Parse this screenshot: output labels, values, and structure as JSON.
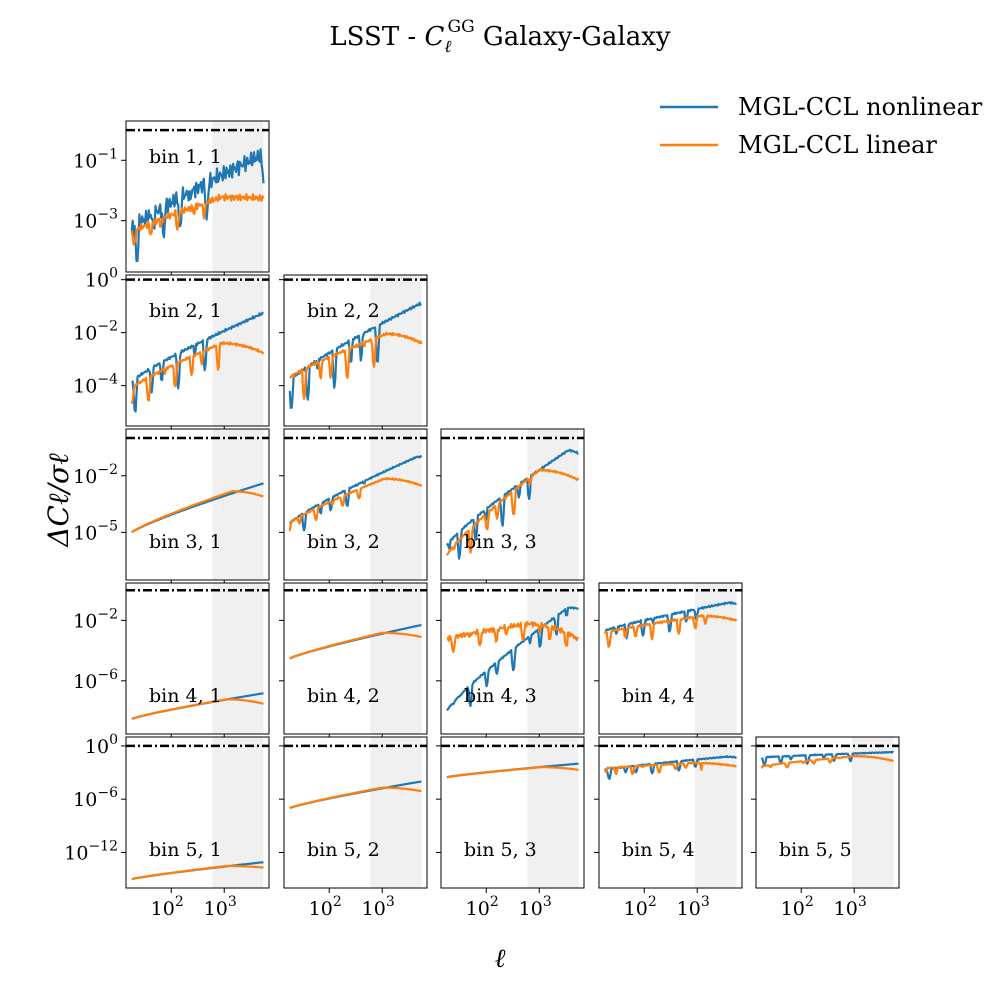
{
  "figure": {
    "title_prefix": "LSST - ",
    "title_sym": "C",
    "title_sub": "ℓ",
    "title_sup": "GG",
    "title_suffix": " Galaxy-Galaxy",
    "ylabel": "ΔCℓ/σℓ",
    "xlabel": "ℓ"
  },
  "legend": {
    "placement": "top-right",
    "entries": [
      {
        "label": "MGL-CCL nonlinear",
        "color": "#1f77b4"
      },
      {
        "label": "MGL-CCL linear",
        "color": "#ff7f0e"
      }
    ]
  },
  "colors": {
    "nonlinear": "#1f77b4",
    "linear": "#ff7f0e",
    "threshold": "#000000",
    "shade": "#f0f0f0"
  },
  "chart_data": {
    "type": "line",
    "xscale": "log",
    "yscale": "log",
    "xlim": [
      14,
      7000
    ],
    "x_ticks": [
      {
        "value": 100,
        "base": "10",
        "exp": "2"
      },
      {
        "value": 1000,
        "base": "10",
        "exp": "3"
      }
    ],
    "threshold_line": {
      "y": 1,
      "style": "dash-dot"
    },
    "rows": [
      {
        "row": 1,
        "ylim": [
          2e-05,
          2
        ],
        "y_ticks": [
          {
            "value": 0.001,
            "base": "10",
            "exp": "−3"
          },
          {
            "value": 0.1,
            "base": "10",
            "exp": "−1"
          }
        ]
      },
      {
        "row": 2,
        "ylim": [
          3e-06,
          1.5
        ],
        "y_ticks": [
          {
            "value": 0.0001,
            "base": "10",
            "exp": "−4"
          },
          {
            "value": 0.01,
            "base": "10",
            "exp": "−2"
          },
          {
            "value": 1,
            "base": "10",
            "exp": "0"
          }
        ]
      },
      {
        "row": 3,
        "ylim": [
          3e-08,
          3
        ],
        "y_ticks": [
          {
            "value": 1e-05,
            "base": "10",
            "exp": "−5"
          },
          {
            "value": 0.01,
            "base": "10",
            "exp": "−2"
          }
        ]
      },
      {
        "row": 4,
        "ylim": [
          3e-10,
          3
        ],
        "y_ticks": [
          {
            "value": 1e-06,
            "base": "10",
            "exp": "−6"
          },
          {
            "value": 0.01,
            "base": "10",
            "exp": "−2"
          }
        ]
      },
      {
        "row": 5,
        "ylim": [
          1e-16,
          10
        ],
        "y_ticks": [
          {
            "value": 1e-12,
            "base": "10",
            "exp": "−12"
          },
          {
            "value": 1e-06,
            "base": "10",
            "exp": "−6"
          },
          {
            "value": 1,
            "base": "10",
            "exp": "0"
          }
        ]
      }
    ],
    "panels": [
      {
        "label": "bin 1, 1",
        "row": 1,
        "col": 1,
        "shade_from": 600,
        "shade_to": 5500,
        "nonlinear": {
          "start": 0.0005,
          "end": 0.02,
          "peak": 0.14,
          "peak_x": 4700,
          "osc": 1.2,
          "osc_end": 700,
          "noise": 0.3
        },
        "linear": {
          "start": 0.0004,
          "end": 0.0055,
          "peak": 0.006,
          "peak_x": 900,
          "osc": 0.5,
          "osc_end": 700,
          "noise": 0.12
        }
      },
      {
        "label": "bin 2, 1",
        "row": 2,
        "col": 1,
        "shade_from": 600,
        "shade_to": 5500,
        "nonlinear": {
          "start": 0.00014,
          "end": 0.055,
          "peak": 0.055,
          "peak_x": 5500,
          "osc": 1.3,
          "osc_end": 800,
          "noise": 0.05
        },
        "linear": {
          "start": 8e-05,
          "end": 0.0017,
          "peak": 0.004,
          "peak_x": 900,
          "osc": 0.9,
          "osc_end": 800,
          "noise": 0.05
        }
      },
      {
        "label": "bin 2, 2",
        "row": 2,
        "col": 2,
        "shade_from": 600,
        "shade_to": 5500,
        "nonlinear": {
          "start": 0.00015,
          "end": 0.11,
          "peak": 0.12,
          "peak_x": 5000,
          "osc": 1.4,
          "osc_end": 900,
          "noise": 0.05
        },
        "linear": {
          "start": 0.0002,
          "end": 0.004,
          "peak": 0.009,
          "peak_x": 1200,
          "osc": 1.1,
          "osc_end": 900,
          "noise": 0.05
        }
      },
      {
        "label": "bin 3, 1",
        "row": 3,
        "col": 1,
        "shade_from": 600,
        "shade_to": 5500,
        "nonlinear": {
          "start": 1e-05,
          "end": 0.004,
          "peak": 0.004,
          "peak_x": 5500,
          "osc": 0,
          "osc_end": 0,
          "noise": 0
        },
        "linear": {
          "start": 1e-05,
          "end": 0.0008,
          "peak": 0.0015,
          "peak_x": 1400,
          "osc": 0,
          "osc_end": 0,
          "noise": 0
        }
      },
      {
        "label": "bin 3, 2",
        "row": 3,
        "col": 2,
        "shade_from": 600,
        "shade_to": 5500,
        "nonlinear": {
          "start": 3e-05,
          "end": 0.1,
          "peak": 0.1,
          "peak_x": 4500,
          "osc": 0.9,
          "osc_end": 500,
          "noise": 0.04
        },
        "linear": {
          "start": 3e-05,
          "end": 0.003,
          "peak": 0.007,
          "peak_x": 1100,
          "osc": 0.6,
          "osc_end": 500,
          "noise": 0.04
        }
      },
      {
        "label": "bin 3, 3",
        "row": 3,
        "col": 3,
        "shade_from": 600,
        "shade_to": 5500,
        "nonlinear": {
          "start": 2e-06,
          "end": 0.15,
          "peak": 0.22,
          "peak_x": 3500,
          "osc": 1.5,
          "osc_end": 900,
          "noise": 0.05
        },
        "linear": {
          "start": 6e-07,
          "end": 0.006,
          "peak": 0.02,
          "peak_x": 1000,
          "osc": 1.3,
          "osc_end": 900,
          "noise": 0.05
        }
      },
      {
        "label": "bin 4, 1",
        "row": 4,
        "col": 1,
        "shade_from": 600,
        "shade_to": 5500,
        "nonlinear": {
          "start": 3e-09,
          "end": 1.5e-07,
          "peak": 1.5e-07,
          "peak_x": 5500,
          "osc": 0,
          "osc_end": 0,
          "noise": 0
        },
        "linear": {
          "start": 3e-09,
          "end": 3e-08,
          "peak": 6e-08,
          "peak_x": 1100,
          "osc": 0,
          "osc_end": 0,
          "noise": 0
        }
      },
      {
        "label": "bin 4, 2",
        "row": 4,
        "col": 2,
        "shade_from": 600,
        "shade_to": 5500,
        "nonlinear": {
          "start": 3e-05,
          "end": 0.005,
          "peak": 0.005,
          "peak_x": 5500,
          "osc": 0,
          "osc_end": 0,
          "noise": 0
        },
        "linear": {
          "start": 3e-05,
          "end": 0.0008,
          "peak": 0.0015,
          "peak_x": 1000,
          "osc": 0,
          "osc_end": 0,
          "noise": 0
        }
      },
      {
        "label": "bin 4, 3",
        "row": 4,
        "col": 3,
        "shade_from": 600,
        "shade_to": 5500,
        "nonlinear": {
          "start": 1e-08,
          "end": 0.06,
          "peak": 0.07,
          "peak_x": 3500,
          "osc": 1.4,
          "osc_end": 5000,
          "noise": 0.05
        },
        "linear": {
          "start": 0.0006,
          "end": 0.0006,
          "peak": 0.006,
          "peak_x": 600,
          "osc": 1.0,
          "osc_end": 5000,
          "noise": 0.18
        }
      },
      {
        "label": "bin 4, 4",
        "row": 4,
        "col": 4,
        "shade_from": 900,
        "shade_to": 5500,
        "nonlinear": {
          "start": 0.002,
          "end": 0.12,
          "peak": 0.15,
          "peak_x": 4000,
          "osc": 1.1,
          "osc_end": 1500,
          "noise": 0.06
        },
        "linear": {
          "start": 0.0015,
          "end": 0.01,
          "peak": 0.02,
          "peak_x": 1200,
          "osc": 1.0,
          "osc_end": 1500,
          "noise": 0.06
        }
      },
      {
        "label": "bin 5, 1",
        "row": 5,
        "col": 1,
        "shade_from": 600,
        "shade_to": 5500,
        "nonlinear": {
          "start": 1e-15,
          "end": 8e-14,
          "peak": 8e-14,
          "peak_x": 5500,
          "osc": 0,
          "osc_end": 0,
          "noise": 0
        },
        "linear": {
          "start": 1e-15,
          "end": 2e-14,
          "peak": 3e-14,
          "peak_x": 1100,
          "osc": 0,
          "osc_end": 0,
          "noise": 0
        }
      },
      {
        "label": "bin 5, 2",
        "row": 5,
        "col": 2,
        "shade_from": 600,
        "shade_to": 5500,
        "nonlinear": {
          "start": 1e-07,
          "end": 0.0001,
          "peak": 0.0001,
          "peak_x": 5500,
          "osc": 0,
          "osc_end": 0,
          "noise": 0
        },
        "linear": {
          "start": 1e-07,
          "end": 8e-06,
          "peak": 2e-05,
          "peak_x": 1000,
          "osc": 0,
          "osc_end": 0,
          "noise": 0
        }
      },
      {
        "label": "bin 5, 3",
        "row": 5,
        "col": 3,
        "shade_from": 600,
        "shade_to": 5500,
        "nonlinear": {
          "start": 0.0003,
          "end": 0.01,
          "peak": 0.01,
          "peak_x": 5500,
          "osc": 0,
          "osc_end": 0,
          "noise": 0
        },
        "linear": {
          "start": 0.0003,
          "end": 0.002,
          "peak": 0.004,
          "peak_x": 1100,
          "osc": 0,
          "osc_end": 0,
          "noise": 0
        }
      },
      {
        "label": "bin 5, 4",
        "row": 5,
        "col": 4,
        "shade_from": 900,
        "shade_to": 5500,
        "nonlinear": {
          "start": 0.002,
          "end": 0.05,
          "peak": 0.06,
          "peak_x": 3500,
          "osc": 1.1,
          "osc_end": 1200,
          "noise": 0.06
        },
        "linear": {
          "start": 0.003,
          "end": 0.005,
          "peak": 0.012,
          "peak_x": 900,
          "osc": 0.9,
          "osc_end": 1200,
          "noise": 0.06
        }
      },
      {
        "label": "bin 5, 5",
        "row": 5,
        "col": 5,
        "shade_from": 900,
        "shade_to": 5500,
        "nonlinear": {
          "start": 0.05,
          "end": 0.2,
          "peak": 0.2,
          "peak_x": 5500,
          "osc": 0.9,
          "osc_end": 1000,
          "noise": 0.05
        },
        "linear": {
          "start": 0.005,
          "end": 0.02,
          "peak": 0.07,
          "peak_x": 1000,
          "osc": 0.5,
          "osc_end": 1000,
          "noise": 0.04
        }
      }
    ]
  }
}
